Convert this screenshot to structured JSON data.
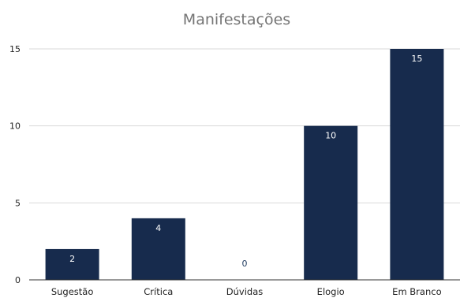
{
  "chart_data": {
    "type": "bar",
    "title": "Manifestações",
    "xlabel": "",
    "ylabel": "",
    "categories": [
      "Sugestão",
      "Crítica",
      "Dúvidas",
      "Elogio",
      "Em Branco"
    ],
    "values": [
      2,
      4,
      0,
      10,
      15
    ],
    "ylim": [
      0,
      15
    ],
    "yticks": [
      0,
      5,
      10,
      15
    ],
    "grid": true,
    "legend": "none",
    "bar_color": "#172b4d",
    "label_inside_color": "#ffffff",
    "label_outside_color": "#1f3a5f"
  }
}
